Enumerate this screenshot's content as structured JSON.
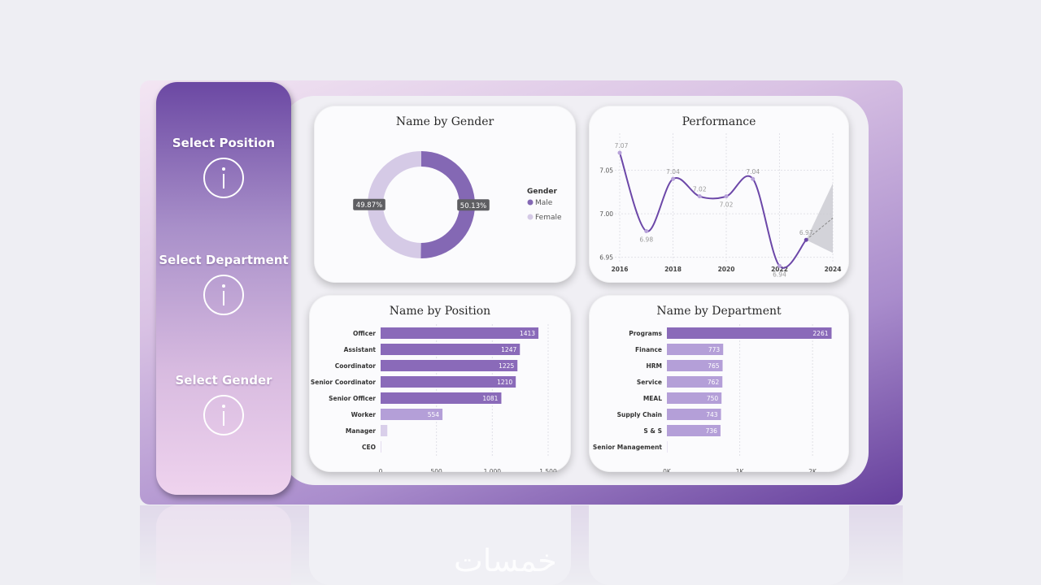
{
  "slicers": [
    {
      "label": "Select Position",
      "icon": "info-icon"
    },
    {
      "label": "Select Department",
      "icon": "info-icon"
    },
    {
      "label": "Select Gender",
      "icon": "info-icon"
    }
  ],
  "watermark": "خمسات",
  "colors": {
    "primary": "#8b6bbd",
    "light": "#d3c5e4",
    "bar_dark": "#8a6ab9",
    "bar_light": "#b49fd8",
    "line": "#6c47a8"
  },
  "chart_data": [
    {
      "type": "pie",
      "variant": "donut",
      "title": "Name by Gender",
      "legend_title": "Gender",
      "legend_position": "right",
      "labels": [
        "Male",
        "Female"
      ],
      "values": [
        50.13,
        49.87
      ],
      "data_labels": [
        "50.13%",
        "49.87%"
      ],
      "colors": [
        "#8468b4",
        "#d5cae6"
      ]
    },
    {
      "type": "line",
      "title": "Performance",
      "x": [
        2016,
        2017,
        2018,
        2019,
        2020,
        2021,
        2022,
        2023
      ],
      "y": [
        7.07,
        6.98,
        7.04,
        7.02,
        7.02,
        7.04,
        6.94,
        6.97
      ],
      "data_labels": [
        "7.07",
        "6.98",
        "7.04",
        "7.02",
        "7.02",
        "7.04",
        "6.94",
        "6.97"
      ],
      "x_ticks": [
        "2016",
        "2018",
        "2020",
        "2022",
        "2024"
      ],
      "y_ticks": [
        "6.95",
        "7.00",
        "7.05"
      ],
      "xlim": [
        2016,
        2024
      ],
      "ylim": [
        6.945,
        7.085
      ],
      "forecast": {
        "x": [
          2023,
          2024
        ],
        "y": [
          6.97,
          6.995
        ],
        "upper": [
          6.97,
          7.035
        ],
        "lower": [
          6.97,
          6.955
        ]
      },
      "grid": true
    },
    {
      "type": "bar",
      "orientation": "horizontal",
      "title": "Name by Position",
      "categories": [
        "Officer",
        "Assistant",
        "Coordinator",
        "Senior Coordinator",
        "Senior Officer",
        "Worker",
        "Manager",
        "CEO"
      ],
      "values": [
        1413,
        1247,
        1225,
        1210,
        1081,
        554,
        60,
        5
      ],
      "data_labels": [
        "1413",
        "1247",
        "1225",
        "1210",
        "1081",
        "554",
        "",
        ""
      ],
      "x_ticks": [
        "0",
        "500",
        "1,000",
        "1,500"
      ],
      "xlim": [
        0,
        1500
      ],
      "grid": true
    },
    {
      "type": "bar",
      "orientation": "horizontal",
      "title": "Name by Department",
      "categories": [
        "Programs",
        "Finance",
        "HRM",
        "Service",
        "MEAL",
        "Supply Chain",
        "S & S",
        "Senior Management"
      ],
      "values": [
        2261,
        773,
        765,
        762,
        750,
        743,
        736,
        3
      ],
      "data_labels": [
        "2261",
        "773",
        "765",
        "762",
        "750",
        "743",
        "736",
        ""
      ],
      "x_ticks": [
        "0K",
        "1K",
        "2K"
      ],
      "xlim": [
        0,
        2300
      ],
      "grid": true
    }
  ]
}
